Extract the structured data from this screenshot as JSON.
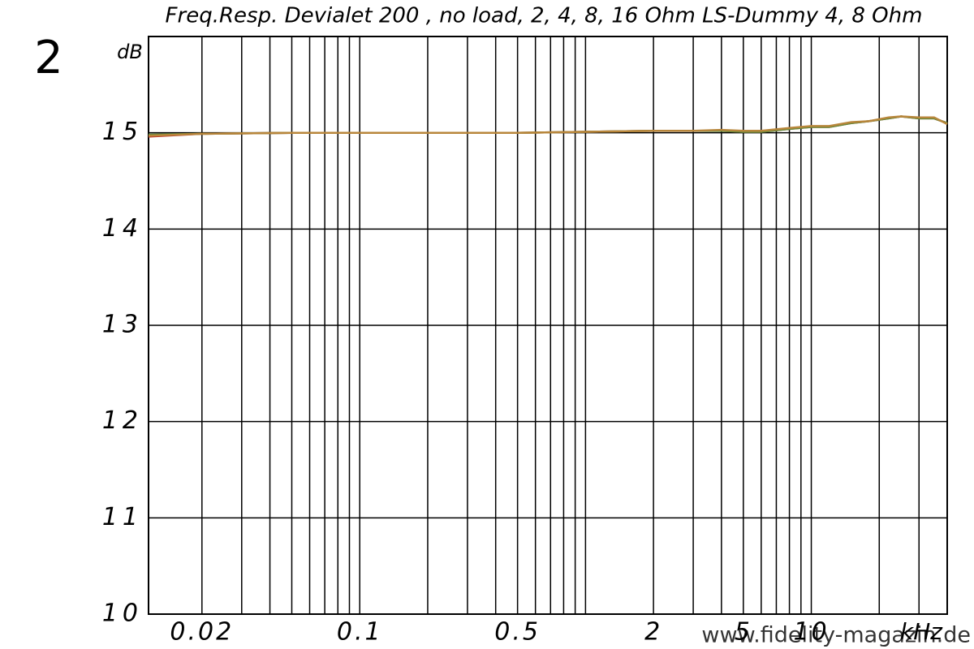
{
  "chart_data": {
    "type": "line",
    "figure_label": "2",
    "title": "Freq.Resp. Devialet 200 ,  no load,  2, 4, 8, 16 Ohm LS-Dummy 4,  8 Ohm",
    "y_label": "dB",
    "x_label": "kHz",
    "watermark": "www.fidelity-magazin.de",
    "x_scale": "log",
    "grid": true,
    "xlim": [
      0.0116,
      40
    ],
    "ylim": [
      10,
      16
    ],
    "xticks": [
      0.02,
      0.1,
      0.5,
      2,
      5,
      10
    ],
    "xminor": [
      0.02,
      0.03,
      0.04,
      0.05,
      0.06,
      0.07,
      0.08,
      0.09,
      0.1,
      0.2,
      0.3,
      0.4,
      0.5,
      0.6,
      0.7,
      0.8,
      0.9,
      1,
      2,
      3,
      4,
      5,
      6,
      7,
      8,
      9,
      10,
      20,
      30
    ],
    "yticks": [
      10,
      11,
      12,
      13,
      14,
      15
    ],
    "x": [
      0.0116,
      0.02,
      0.05,
      0.1,
      0.5,
      1,
      2,
      3,
      4,
      5,
      6,
      8,
      10,
      12,
      15,
      18,
      22,
      25,
      30,
      35,
      40
    ],
    "series": [
      {
        "color": "#c0392b",
        "values": [
          14.96,
          14.99,
          15.0,
          15.0,
          15.0,
          15.01,
          15.02,
          15.02,
          15.02,
          15.01,
          15.01,
          15.04,
          15.06,
          15.06,
          15.1,
          15.12,
          15.15,
          15.17,
          15.15,
          15.15,
          15.1
        ]
      },
      {
        "color": "#5f8a3a",
        "values": [
          14.98,
          14.99,
          15.0,
          15.0,
          15.0,
          15.01,
          15.02,
          15.02,
          15.02,
          15.01,
          15.01,
          15.04,
          15.06,
          15.06,
          15.1,
          15.12,
          15.15,
          15.17,
          15.15,
          15.15,
          15.1
        ]
      },
      {
        "color": "#b8863b",
        "values": [
          14.97,
          14.99,
          15.0,
          15.0,
          15.0,
          15.01,
          15.02,
          15.02,
          15.03,
          15.02,
          15.02,
          15.05,
          15.07,
          15.07,
          15.11,
          15.12,
          15.16,
          15.17,
          15.16,
          15.16,
          15.09
        ]
      }
    ]
  }
}
